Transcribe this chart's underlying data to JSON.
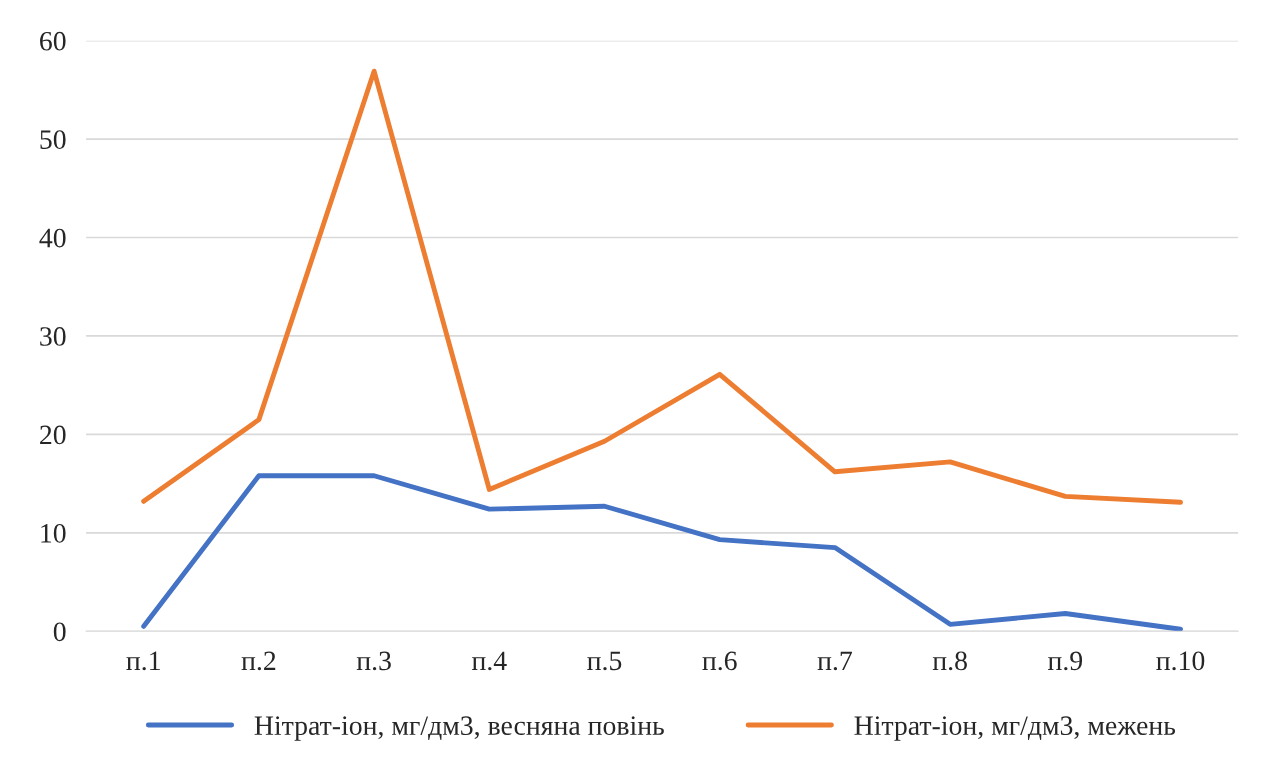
{
  "chart_data": {
    "type": "line",
    "categories": [
      "п.1",
      "п.2",
      "п.3",
      "п.4",
      "п.5",
      "п.6",
      "п.7",
      "п.8",
      "п.9",
      "п.10"
    ],
    "series": [
      {
        "name": "Нітрат-іон, мг/дм3, весняна повінь",
        "color": "#4472c4",
        "values": [
          0.5,
          15.8,
          15.8,
          12.4,
          12.7,
          9.3,
          8.5,
          0.7,
          1.8,
          0.2
        ]
      },
      {
        "name": "Нітрат-іон, мг/дм3, межень",
        "color": "#ed7d31",
        "values": [
          13.2,
          21.5,
          56.9,
          14.4,
          19.3,
          26.1,
          16.2,
          17.2,
          13.7,
          13.1
        ]
      }
    ],
    "ylim": [
      0,
      60
    ],
    "yticks": [
      0,
      10,
      20,
      30,
      40,
      50,
      60
    ],
    "grid": "y",
    "legend": "bottom",
    "marker": "none",
    "line_style": "solid"
  }
}
